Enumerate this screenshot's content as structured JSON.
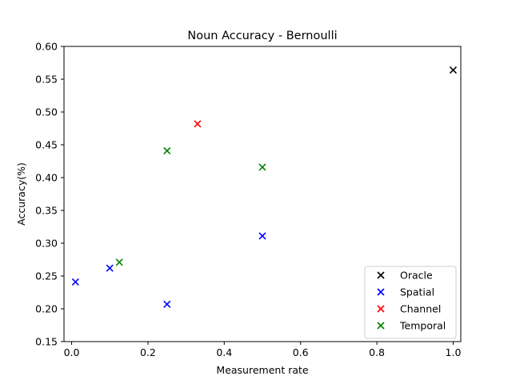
{
  "chart_data": {
    "type": "scatter",
    "title": "Noun Accuracy - Bernoulli",
    "xlabel": "Measurement rate",
    "ylabel": "Accuracy(%)",
    "xlim": [
      -0.02,
      1.02
    ],
    "ylim": [
      0.15,
      0.6
    ],
    "xticks": [
      0.0,
      0.2,
      0.4,
      0.6,
      0.8,
      1.0
    ],
    "xtick_labels": [
      "0.0",
      "0.2",
      "0.4",
      "0.6",
      "0.8",
      "1.0"
    ],
    "yticks": [
      0.15,
      0.2,
      0.25,
      0.3,
      0.35,
      0.4,
      0.45,
      0.5,
      0.55,
      0.6
    ],
    "ytick_labels": [
      "0.15",
      "0.20",
      "0.25",
      "0.30",
      "0.35",
      "0.40",
      "0.45",
      "0.50",
      "0.55",
      "0.60"
    ],
    "grid": false,
    "legend_position": "lower-right",
    "series": [
      {
        "name": "Oracle",
        "color": "#000000",
        "marker": "x",
        "points": [
          {
            "x": 1.0,
            "y": 0.564
          }
        ]
      },
      {
        "name": "Spatial",
        "color": "#0000ff",
        "marker": "x",
        "points": [
          {
            "x": 0.01,
            "y": 0.241
          },
          {
            "x": 0.1,
            "y": 0.262
          },
          {
            "x": 0.25,
            "y": 0.207
          },
          {
            "x": 0.5,
            "y": 0.311
          }
        ]
      },
      {
        "name": "Channel",
        "color": "#ff0000",
        "marker": "x",
        "points": [
          {
            "x": 0.33,
            "y": 0.482
          }
        ]
      },
      {
        "name": "Temporal",
        "color": "#008000",
        "marker": "x",
        "points": [
          {
            "x": 0.125,
            "y": 0.271
          },
          {
            "x": 0.25,
            "y": 0.441
          },
          {
            "x": 0.5,
            "y": 0.416
          }
        ]
      }
    ]
  }
}
